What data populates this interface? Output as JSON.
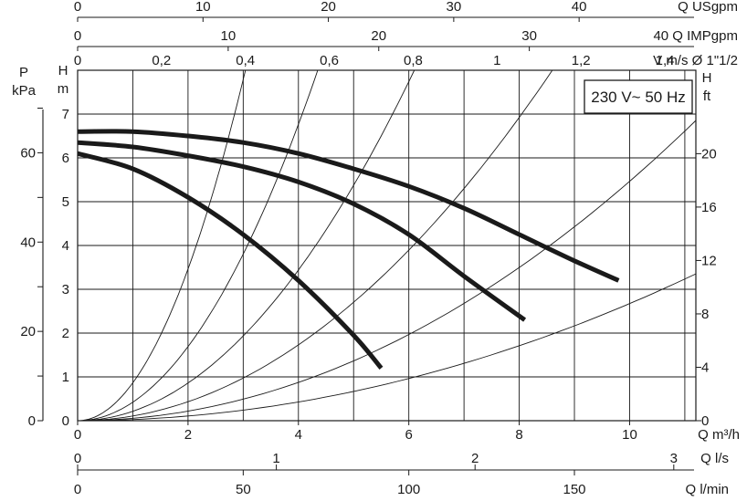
{
  "colors": {
    "ink": "#1a1a1a",
    "grid": "#1a1a1a",
    "curve": "#1a1a1a",
    "background": "#ffffff"
  },
  "chart_data": {
    "type": "line",
    "title": "",
    "badge": "230 V~ 50 Hz",
    "xlabel": "Q m³/h",
    "ylabel": "H m",
    "xlim": [
      0,
      11.2
    ],
    "ylim": [
      0,
      8
    ],
    "x_ticks": [
      0,
      2,
      4,
      6,
      8,
      10
    ],
    "y_ticks": [
      0,
      1,
      2,
      3,
      4,
      5,
      6,
      7
    ],
    "grid": true,
    "top_axes": [
      {
        "name": "usgpm",
        "label": "Q USgpm",
        "ticks": [
          "0",
          "10",
          "20",
          "30",
          "40"
        ],
        "values": [
          0,
          10,
          20,
          30,
          40
        ],
        "per_m3h": 4.4029
      },
      {
        "name": "impgpm",
        "label": "40 Q IMPgpm",
        "ticks": [
          "0",
          "10",
          "20",
          "30"
        ],
        "values": [
          0,
          10,
          20,
          30
        ],
        "per_m3h": 3.6662
      },
      {
        "name": "velocity",
        "label": "V m/s Ø 1\"1/2",
        "ticks": [
          "0",
          "0,2",
          "0,4",
          "0,6",
          "0,8",
          "1",
          "1,2",
          "1,4"
        ],
        "values": [
          0,
          0.2,
          0.4,
          0.6,
          0.8,
          1.0,
          1.2,
          1.4
        ],
        "per_m3h": 0.1316
      }
    ],
    "bottom_axes": [
      {
        "name": "ls",
        "label": "Q l/s",
        "ticks": [
          "0",
          "1",
          "2",
          "3"
        ],
        "values": [
          0,
          1,
          2,
          3
        ],
        "per_m3h": 0.27778
      },
      {
        "name": "lmin",
        "label": "Q l/min",
        "ticks": [
          "0",
          "50",
          "100",
          "150"
        ],
        "values": [
          0,
          50,
          100,
          150
        ],
        "per_m3h": 16.6667
      }
    ],
    "left_axes": [
      {
        "name": "kpa",
        "label": [
          "P",
          "kPa"
        ],
        "major_ticks": [
          "0",
          "20",
          "40",
          "60"
        ],
        "values": [
          0,
          20,
          40,
          60
        ],
        "minor_values": [
          10,
          30,
          50,
          70
        ],
        "per_m": 9.81
      }
    ],
    "right_axes": [
      {
        "name": "ft",
        "label": [
          "H",
          "ft"
        ],
        "ticks": [
          "0",
          "4",
          "8",
          "12",
          "16",
          "20"
        ],
        "values": [
          0,
          4,
          8,
          12,
          16,
          20
        ],
        "per_m": 3.2808
      }
    ],
    "series": [
      {
        "x": [
          0,
          1,
          2,
          3,
          4,
          5,
          5.5
        ],
        "y": [
          6.1,
          5.75,
          5.1,
          4.25,
          3.2,
          1.95,
          1.2
        ]
      },
      {
        "x": [
          0,
          1,
          2,
          3,
          4,
          5,
          6,
          7,
          8.1
        ],
        "y": [
          6.35,
          6.25,
          6.05,
          5.8,
          5.45,
          4.95,
          4.25,
          3.3,
          2.3
        ]
      },
      {
        "x": [
          0,
          1,
          2,
          3,
          4,
          5,
          6,
          7,
          8,
          9,
          9.8
        ],
        "y": [
          6.6,
          6.6,
          6.5,
          6.35,
          6.1,
          5.75,
          5.35,
          4.85,
          4.25,
          3.65,
          3.2
        ]
      }
    ],
    "system_curves": [
      {
        "x_at_8m": 3.04
      },
      {
        "x_at_8m": 4.35
      },
      {
        "x_at_8m": 6.1
      },
      {
        "x_at_8m": 8.6
      },
      {
        "x_at_8m": 12.1
      },
      {
        "x_at_8m": 17.3
      }
    ]
  }
}
